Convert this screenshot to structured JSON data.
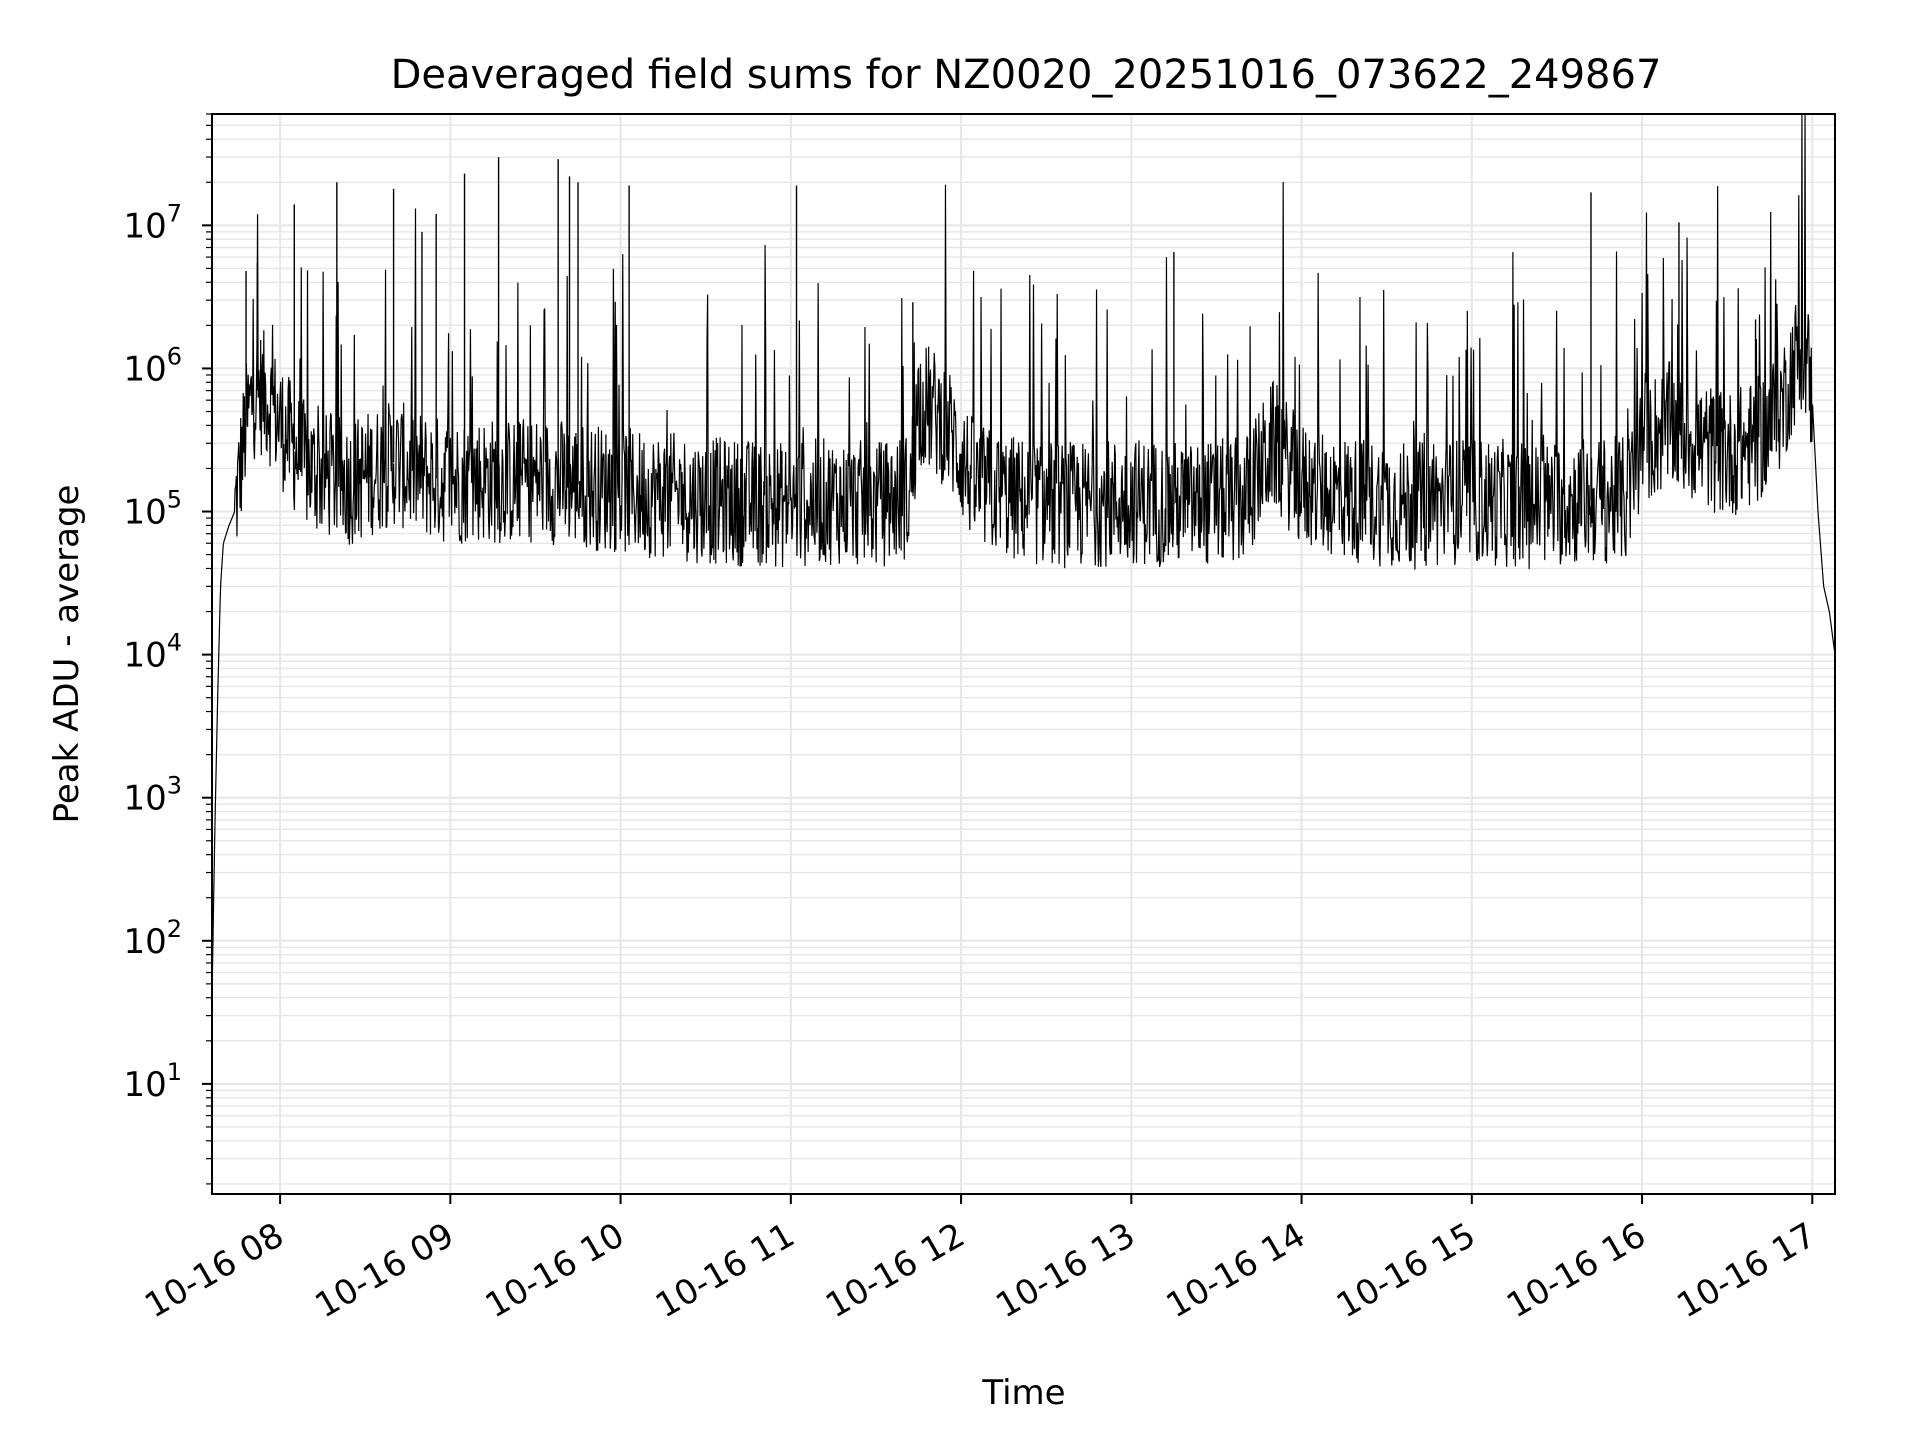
{
  "chart_data": {
    "type": "line",
    "title": "Deaveraged field sums for NZ0020_20251016_073622_249867",
    "xlabel": "Time",
    "ylabel": "Peak ADU - average",
    "yscale": "log",
    "grid": true,
    "grid_color": "#e6e6e6",
    "line_color": "#000000",
    "xlim": [
      "10-16 07:36",
      "10-16 17:08"
    ],
    "ylim": [
      1.7,
      60000000
    ],
    "x_tick_labels": [
      "10-16 08",
      "10-16 09",
      "10-16 10",
      "10-16 11",
      "10-16 12",
      "10-16 13",
      "10-16 14",
      "10-16 15",
      "10-16 16",
      "10-16 17"
    ],
    "y_ticks": [
      {
        "base": "10",
        "exp": "1",
        "value": 10
      },
      {
        "base": "10",
        "exp": "2",
        "value": 100
      },
      {
        "base": "10",
        "exp": "3",
        "value": 1000
      },
      {
        "base": "10",
        "exp": "4",
        "value": 10000
      },
      {
        "base": "10",
        "exp": "5",
        "value": 100000
      },
      {
        "base": "10",
        "exp": "6",
        "value": 1000000
      },
      {
        "base": "10",
        "exp": "7",
        "value": 10000000
      }
    ],
    "series": [
      {
        "x": [
          "10-16 07:36",
          "10-16 07:37",
          "10-16 07:38",
          "10-16 07:39",
          "10-16 07:40",
          "10-16 07:42",
          "10-16 07:44",
          "10-16 07:46",
          "10-16 07:48",
          "10-16 07:50",
          "10-16 07:52",
          "10-16 07:55",
          "10-16 07:58",
          "10-16 08:02",
          "10-16 08:06",
          "10-16 08:10",
          "10-16 08:15",
          "10-16 08:20",
          "10-16 08:25",
          "10-16 08:30",
          "10-16 08:35",
          "10-16 08:40",
          "10-16 08:45",
          "10-16 08:50",
          "10-16 08:55",
          "10-16 09:00",
          "10-16 09:10",
          "10-16 09:20",
          "10-16 09:30",
          "10-16 09:40",
          "10-16 09:50",
          "10-16 10:00",
          "10-16 10:15",
          "10-16 10:30",
          "10-16 10:45",
          "10-16 11:00",
          "10-16 11:15",
          "10-16 11:30",
          "10-16 11:42",
          "10-16 11:45",
          "10-16 11:50",
          "10-16 11:55",
          "10-16 12:05",
          "10-16 12:20",
          "10-16 12:40",
          "10-16 13:00",
          "10-16 13:20",
          "10-16 13:40",
          "10-16 13:50",
          "10-16 14:00",
          "10-16 14:20",
          "10-16 14:40",
          "10-16 15:00",
          "10-16 15:20",
          "10-16 15:40",
          "10-16 15:55",
          "10-16 16:00",
          "10-16 16:10",
          "10-16 16:20",
          "10-16 16:30",
          "10-16 16:40",
          "10-16 16:45",
          "10-16 16:50",
          "10-16 16:53",
          "10-16 16:56",
          "10-16 16:58",
          "10-16 17:00",
          "10-16 17:02",
          "10-16 17:04",
          "10-16 17:06",
          "10-16 17:08"
        ],
        "y": [
          40,
          600,
          5000,
          30000,
          60000,
          80000,
          100000,
          200000,
          400000,
          600000,
          700000,
          650000,
          500000,
          350000,
          250000,
          200000,
          180000,
          170000,
          160000,
          180000,
          200000,
          220000,
          200000,
          180000,
          170000,
          160000,
          170000,
          160000,
          170000,
          160000,
          150000,
          140000,
          130000,
          120000,
          115000,
          110000,
          120000,
          110000,
          130000,
          600000,
          500000,
          400000,
          150000,
          120000,
          110000,
          120000,
          110000,
          120000,
          300000,
          150000,
          120000,
          110000,
          120000,
          110000,
          120000,
          120000,
          300000,
          400000,
          300000,
          250000,
          300000,
          400000,
          600000,
          1000000,
          1400000,
          1200000,
          600000,
          100000,
          30000,
          20000,
          10000
        ]
      }
    ],
    "spikes": [
      {
        "x": "10-16 07:48",
        "y": 4800000
      },
      {
        "x": "10-16 07:52",
        "y": 5500000
      },
      {
        "x": "10-16 08:05",
        "y": 14000000
      },
      {
        "x": "10-16 08:20",
        "y": 20000000
      },
      {
        "x": "10-16 08:40",
        "y": 18000000
      },
      {
        "x": "10-16 08:50",
        "y": 9000000
      },
      {
        "x": "10-16 08:55",
        "y": 12000000
      },
      {
        "x": "10-16 09:05",
        "y": 23000000
      },
      {
        "x": "10-16 09:17",
        "y": 30000000
      },
      {
        "x": "10-16 09:38",
        "y": 29000000
      },
      {
        "x": "10-16 09:42",
        "y": 22000000
      },
      {
        "x": "10-16 09:45",
        "y": 20000000
      },
      {
        "x": "10-16 10:03",
        "y": 19000000
      },
      {
        "x": "10-16 11:02",
        "y": 19000000
      },
      {
        "x": "10-16 11:43",
        "y": 2900000
      },
      {
        "x": "10-16 13:15",
        "y": 6500000
      },
      {
        "x": "10-16 15:42",
        "y": 17000000
      },
      {
        "x": "10-16 16:13",
        "y": 10500000
      },
      {
        "x": "10-16 16:40",
        "y": 2200000
      }
    ]
  }
}
